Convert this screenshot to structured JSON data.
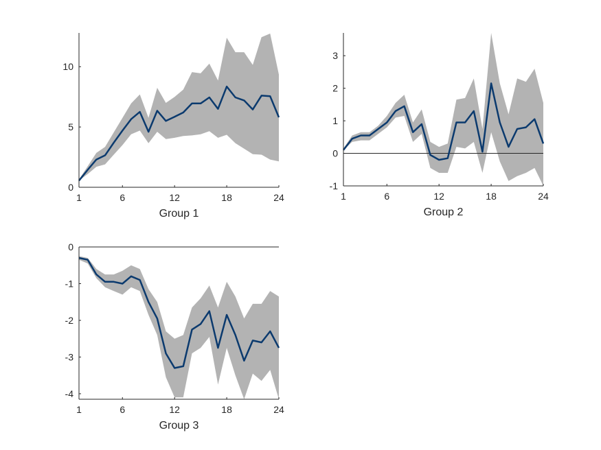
{
  "chart_data": [
    {
      "type": "line",
      "xlabel": "Group 1",
      "xlim": [
        1,
        24
      ],
      "ylim": [
        0,
        12.8
      ],
      "xticks": [
        1,
        6,
        12,
        18,
        24
      ],
      "yticks": [
        0,
        5,
        10
      ],
      "zero_line": false,
      "band_color": "#b3b3b3",
      "line_color": "#0b3a6e",
      "x": [
        1,
        2,
        3,
        4,
        5,
        6,
        7,
        8,
        9,
        10,
        11,
        12,
        13,
        14,
        15,
        16,
        17,
        18,
        19,
        20,
        21,
        22,
        23,
        24
      ],
      "series": [
        {
          "values": [
            0.55,
            1.45,
            2.3,
            2.65,
            3.7,
            4.7,
            5.65,
            6.25,
            4.6,
            6.35,
            5.5,
            5.85,
            6.2,
            6.95,
            6.95,
            7.45,
            6.5,
            8.35,
            7.45,
            7.2,
            6.45,
            7.6,
            7.55,
            5.8
          ]
        }
      ],
      "band": {
        "lower": [
          0.55,
          1.1,
          1.7,
          1.9,
          2.7,
          3.5,
          4.4,
          4.7,
          3.65,
          4.6,
          4.0,
          4.1,
          4.25,
          4.3,
          4.4,
          4.65,
          4.1,
          4.35,
          3.65,
          3.2,
          2.75,
          2.7,
          2.3,
          2.15
        ],
        "upper": [
          0.65,
          1.75,
          2.85,
          3.35,
          4.55,
          5.75,
          6.95,
          7.7,
          5.75,
          8.25,
          7.0,
          7.5,
          8.1,
          9.55,
          9.45,
          10.25,
          8.85,
          12.4,
          11.2,
          11.2,
          10.15,
          12.45,
          12.75,
          9.35
        ]
      }
    },
    {
      "type": "line",
      "xlabel": "Group 2",
      "xlim": [
        1,
        24
      ],
      "ylim": [
        -1,
        3.7
      ],
      "xticks": [
        1,
        6,
        12,
        18,
        24
      ],
      "yticks": [
        -1,
        0,
        1,
        2,
        3
      ],
      "zero_line": true,
      "band_color": "#b3b3b3",
      "line_color": "#0b3a6e",
      "x": [
        1,
        2,
        3,
        4,
        5,
        6,
        7,
        8,
        9,
        10,
        11,
        12,
        13,
        14,
        15,
        16,
        17,
        18,
        19,
        20,
        21,
        22,
        23,
        24
      ],
      "series": [
        {
          "values": [
            0.1,
            0.45,
            0.55,
            0.55,
            0.75,
            0.95,
            1.3,
            1.45,
            0.65,
            0.9,
            -0.05,
            -0.2,
            -0.15,
            0.95,
            0.95,
            1.3,
            0.05,
            2.15,
            0.95,
            0.2,
            0.75,
            0.8,
            1.05,
            0.3
          ]
        }
      ],
      "band": {
        "lower": [
          0.1,
          0.35,
          0.4,
          0.4,
          0.6,
          0.8,
          1.1,
          1.15,
          0.35,
          0.6,
          -0.45,
          -0.6,
          -0.6,
          0.2,
          0.15,
          0.35,
          -0.6,
          0.65,
          -0.25,
          -0.85,
          -0.7,
          -0.6,
          -0.45,
          -1.0
        ],
        "upper": [
          0.15,
          0.55,
          0.65,
          0.65,
          0.85,
          1.15,
          1.55,
          1.8,
          0.95,
          1.35,
          0.35,
          0.2,
          0.3,
          1.65,
          1.7,
          2.3,
          0.75,
          3.7,
          2.15,
          1.2,
          2.3,
          2.2,
          2.6,
          1.55
        ]
      }
    },
    {
      "type": "line",
      "xlabel": "Group 3",
      "xlim": [
        1,
        24
      ],
      "ylim": [
        -4.15,
        0
      ],
      "xticks": [
        1,
        6,
        12,
        18,
        24
      ],
      "yticks": [
        -4,
        -3,
        -2,
        -1,
        0
      ],
      "zero_line": true,
      "band_color": "#b3b3b3",
      "line_color": "#0b3a6e",
      "x": [
        1,
        2,
        3,
        4,
        5,
        6,
        7,
        8,
        9,
        10,
        11,
        12,
        13,
        14,
        15,
        16,
        17,
        18,
        19,
        20,
        21,
        22,
        23,
        24
      ],
      "series": [
        {
          "values": [
            -0.3,
            -0.35,
            -0.75,
            -0.95,
            -0.95,
            -1.0,
            -0.8,
            -0.9,
            -1.5,
            -1.95,
            -2.9,
            -3.3,
            -3.25,
            -2.25,
            -2.1,
            -1.75,
            -2.75,
            -1.85,
            -2.4,
            -3.1,
            -2.55,
            -2.6,
            -2.3,
            -2.75
          ]
        }
      ],
      "band": {
        "lower": [
          -0.35,
          -0.45,
          -0.85,
          -1.1,
          -1.2,
          -1.3,
          -1.1,
          -1.2,
          -1.85,
          -2.4,
          -3.55,
          -4.1,
          -4.1,
          -2.9,
          -2.75,
          -2.45,
          -3.75,
          -2.75,
          -3.5,
          -4.15,
          -3.45,
          -3.65,
          -3.35,
          -4.15
        ],
        "upper": [
          -0.25,
          -0.3,
          -0.6,
          -0.75,
          -0.75,
          -0.65,
          -0.5,
          -0.6,
          -1.15,
          -1.5,
          -2.3,
          -2.5,
          -2.4,
          -1.65,
          -1.4,
          -1.05,
          -1.65,
          -0.95,
          -1.35,
          -1.95,
          -1.55,
          -1.55,
          -1.2,
          -1.35
        ]
      }
    }
  ]
}
